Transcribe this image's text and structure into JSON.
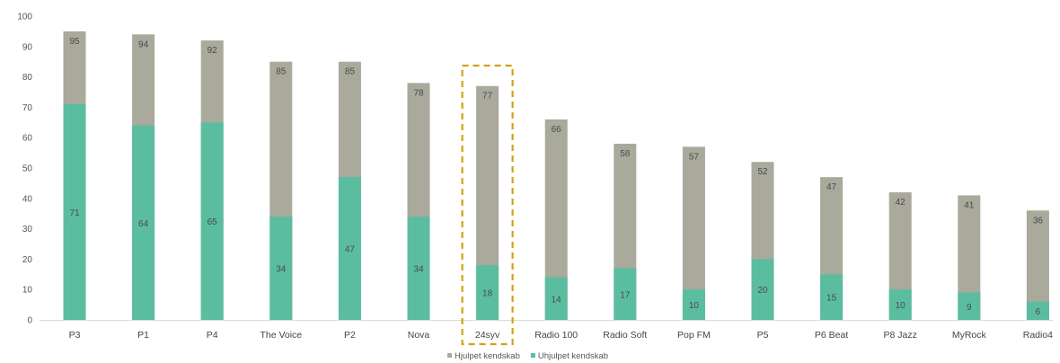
{
  "chart_data": {
    "type": "bar",
    "stacked": false,
    "overlay": true,
    "categories": [
      "P3",
      "P1",
      "P4",
      "The Voice",
      "P2",
      "Nova",
      "24syv",
      "Radio 100",
      "Radio Soft",
      "Pop FM",
      "P5",
      "P6 Beat",
      "P8 Jazz",
      "MyRock",
      "Radio4"
    ],
    "series": [
      {
        "name": "Hjulpet kendskab",
        "color": "#a9a99c",
        "values": [
          95,
          94,
          92,
          85,
          85,
          78,
          77,
          66,
          58,
          57,
          52,
          47,
          42,
          41,
          36
        ]
      },
      {
        "name": "Uhjulpet kendskab",
        "color": "#5bbd9f",
        "values": [
          71,
          64,
          65,
          34,
          47,
          34,
          18,
          14,
          17,
          10,
          20,
          15,
          10,
          9,
          6
        ]
      }
    ],
    "ylim": [
      0,
      100
    ],
    "yticks": [
      0,
      10,
      20,
      30,
      40,
      50,
      60,
      70,
      80,
      90,
      100
    ],
    "highlight": {
      "category": "24syv",
      "style": "dashed-box",
      "color": "#d4a017"
    },
    "legend_position": "bottom-center",
    "grid": false
  }
}
